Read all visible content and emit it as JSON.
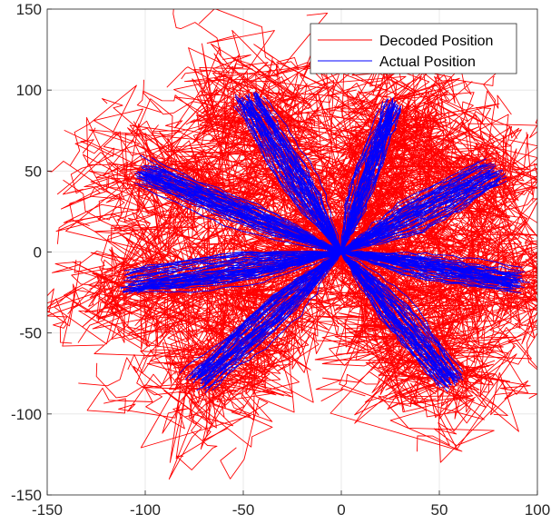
{
  "chart_data": {
    "type": "line",
    "title": "",
    "xlabel": "",
    "ylabel": "",
    "xlim": [
      -150,
      100
    ],
    "ylim": [
      -150,
      150
    ],
    "x_ticks": [
      -150,
      -100,
      -50,
      0,
      50,
      100
    ],
    "y_ticks": [
      -150,
      -100,
      -50,
      0,
      50,
      100,
      150
    ],
    "x_tick_labels": [
      "-150",
      "-100",
      "-50",
      "0",
      "50",
      "100"
    ],
    "y_tick_labels": [
      "-150",
      "-100",
      "-50",
      "0",
      "50",
      "100",
      "150"
    ],
    "grid": true,
    "legend_position": "top-right",
    "series": [
      {
        "name": "Decoded Position",
        "color": "#ff0000",
        "description_targets": [
          [
            28,
            90
          ],
          [
            78,
            50
          ],
          [
            90,
            -18
          ],
          [
            56,
            -80
          ],
          [
            -72,
            -80
          ],
          [
            -108,
            -20
          ],
          [
            -100,
            50
          ],
          [
            -48,
            95
          ]
        ]
      },
      {
        "name": "Actual Position",
        "color": "#0000ff",
        "targets": [
          [
            28,
            90
          ],
          [
            78,
            50
          ],
          [
            90,
            -18
          ],
          [
            56,
            -80
          ],
          [
            -72,
            -80
          ],
          [
            -108,
            -20
          ],
          [
            -100,
            50
          ],
          [
            -48,
            95
          ]
        ]
      }
    ]
  }
}
